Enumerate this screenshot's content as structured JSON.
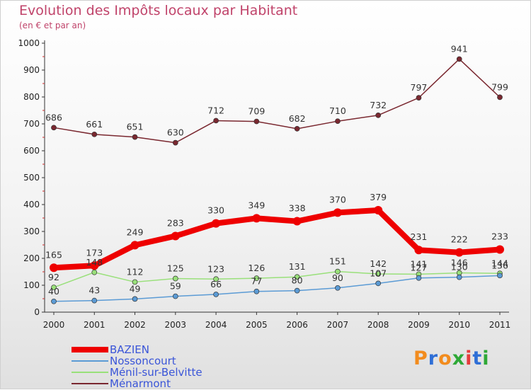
{
  "header": {
    "title": "Evolution des Impôts locaux par Habitant",
    "subtitle": "(en € et par an)"
  },
  "logo": {
    "text": "Proxiti",
    "colors": [
      "#f28c1e",
      "#2f6fd6",
      "#f28c1e",
      "#2ea836",
      "#e63c3c",
      "#2f6fd6",
      "#2ea836"
    ]
  },
  "chart_data": {
    "type": "line",
    "title": "Evolution des Impôts locaux par Habitant",
    "subtitle": "(en € et par an)",
    "x": [
      "2000",
      "2001",
      "2002",
      "2003",
      "2004",
      "2005",
      "2006",
      "2007",
      "2008",
      "2009",
      "2010",
      "2011"
    ],
    "ylim": [
      0,
      1000
    ],
    "yticks": [
      0,
      100,
      200,
      300,
      400,
      500,
      600,
      700,
      800,
      900,
      1000
    ],
    "grid": false,
    "legend_position": "bottom-left",
    "series": [
      {
        "name": "BAZIEN",
        "color": "#ee0000",
        "values": [
          165,
          173,
          249,
          283,
          330,
          349,
          338,
          370,
          379,
          231,
          222,
          233
        ]
      },
      {
        "name": "Nossoncourt",
        "color": "#5b9bd5",
        "values": [
          40,
          43,
          49,
          59,
          66,
          77,
          80,
          90,
          107,
          127,
          130,
          136
        ]
      },
      {
        "name": "Ménil-sur-Belvitte",
        "color": "#99e07a",
        "values": [
          92,
          148,
          112,
          125,
          123,
          126,
          131,
          151,
          142,
          141,
          146,
          144
        ]
      },
      {
        "name": "Ménarmont",
        "color": "#7a2830",
        "values": [
          686,
          661,
          651,
          630,
          712,
          709,
          682,
          710,
          732,
          797,
          941,
          799
        ]
      }
    ]
  }
}
